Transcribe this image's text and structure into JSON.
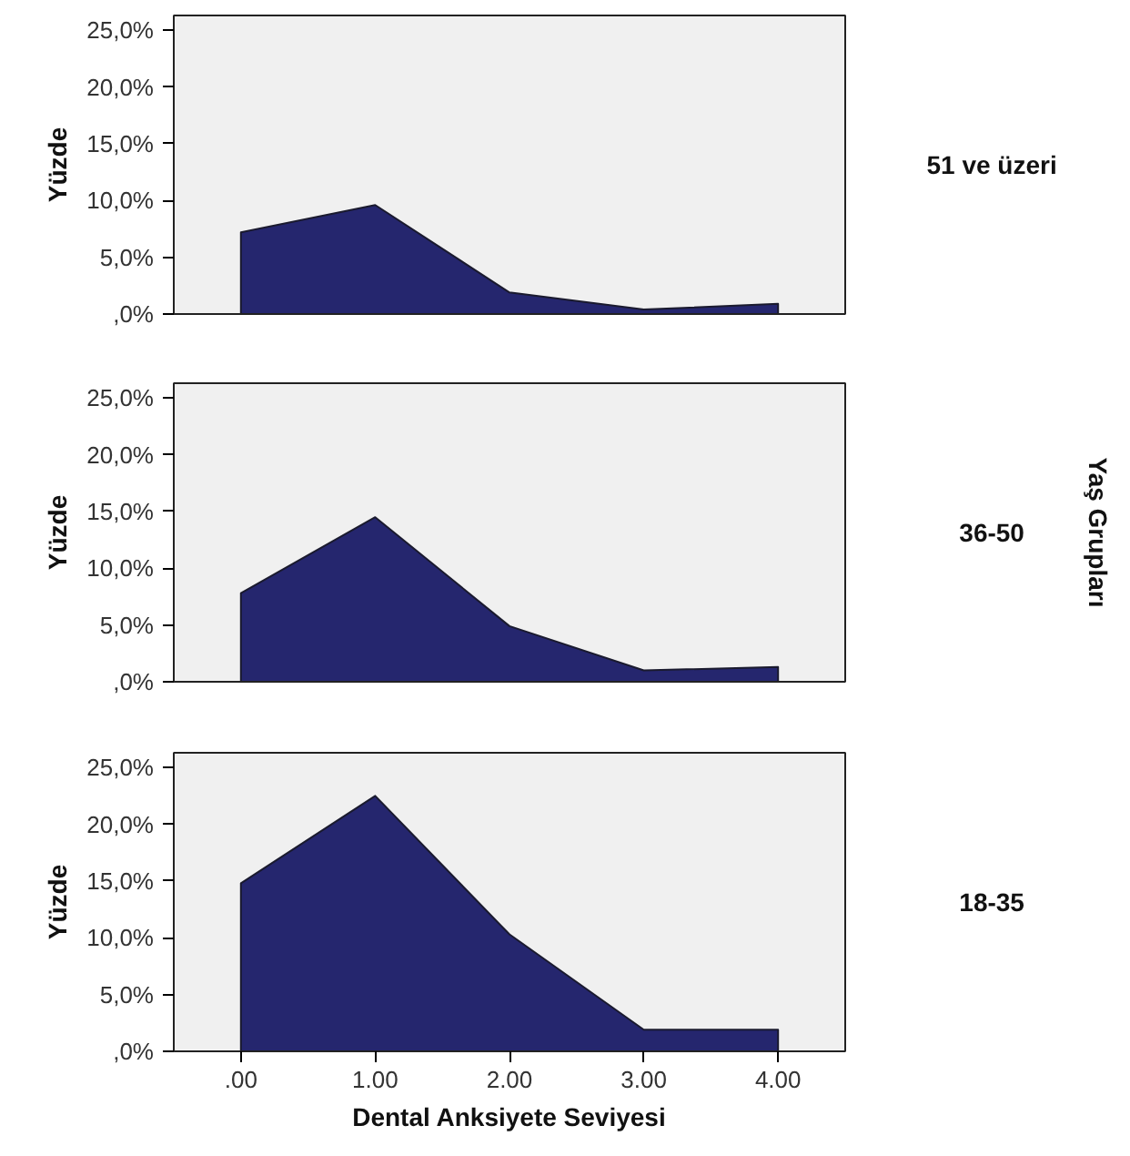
{
  "chart_data": [
    {
      "type": "area",
      "ylabel": "Yüzde",
      "x": [
        0,
        1,
        2,
        3,
        4
      ],
      "xlim": [
        -0.5,
        4.5
      ],
      "ylim": [
        0,
        26.3
      ],
      "yticks": [
        {
          "value": 0,
          "label": ",0%"
        },
        {
          "value": 5,
          "label": "5,0%"
        },
        {
          "value": 10,
          "label": "10,0%"
        },
        {
          "value": 15,
          "label": "15,0%"
        },
        {
          "value": 20,
          "label": "20,0%"
        },
        {
          "value": 25,
          "label": "25,0%"
        }
      ],
      "tick_labels": "y",
      "grid": false,
      "legend": false,
      "series": [
        {
          "name": "51 ve üzeri",
          "color": "#25266e",
          "values": [
            7.2,
            9.6,
            1.9,
            0.4,
            0.9
          ]
        }
      ]
    },
    {
      "type": "area",
      "ylabel": "Yüzde",
      "y2label": "Yaş Grupları",
      "x": [
        0,
        1,
        2,
        3,
        4
      ],
      "xlim": [
        -0.5,
        4.5
      ],
      "ylim": [
        0,
        26.3
      ],
      "yticks": [
        {
          "value": 0,
          "label": ",0%"
        },
        {
          "value": 5,
          "label": "5,0%"
        },
        {
          "value": 10,
          "label": "10,0%"
        },
        {
          "value": 15,
          "label": "15,0%"
        },
        {
          "value": 20,
          "label": "20,0%"
        },
        {
          "value": 25,
          "label": "25,0%"
        }
      ],
      "tick_labels": "y",
      "grid": false,
      "legend": false,
      "series": [
        {
          "name": "36-50",
          "color": "#25266e",
          "values": [
            7.8,
            14.5,
            4.9,
            1.0,
            1.3
          ]
        }
      ]
    },
    {
      "type": "area",
      "xlabel": "Dental Anksiyete Seviyesi",
      "ylabel": "Yüzde",
      "x": [
        0,
        1,
        2,
        3,
        4
      ],
      "xlim": [
        -0.5,
        4.5
      ],
      "ylim": [
        0,
        26.3
      ],
      "xticks": [
        {
          "value": 0,
          "label": ".00"
        },
        {
          "value": 1,
          "label": "1.00"
        },
        {
          "value": 2,
          "label": "2.00"
        },
        {
          "value": 3,
          "label": "3.00"
        },
        {
          "value": 4,
          "label": "4.00"
        }
      ],
      "yticks": [
        {
          "value": 0,
          "label": ",0%"
        },
        {
          "value": 5,
          "label": "5,0%"
        },
        {
          "value": 10,
          "label": "10,0%"
        },
        {
          "value": 15,
          "label": "15,0%"
        },
        {
          "value": 20,
          "label": "20,0%"
        },
        {
          "value": 25,
          "label": "25,0%"
        }
      ],
      "grid": false,
      "legend": false,
      "series": [
        {
          "name": "18-35",
          "color": "#25266e",
          "values": [
            14.8,
            22.5,
            10.3,
            1.9,
            1.9
          ]
        }
      ]
    }
  ]
}
